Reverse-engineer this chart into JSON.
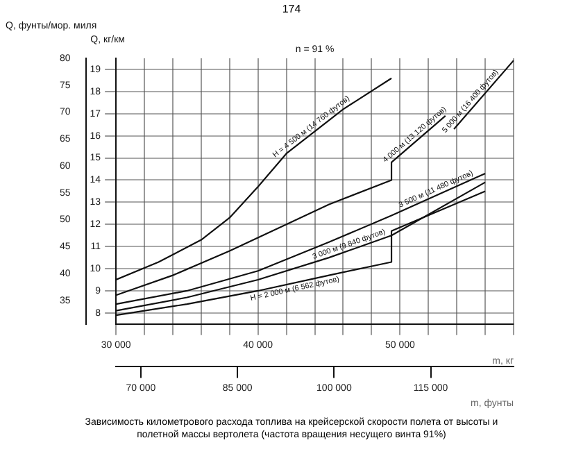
{
  "chart_data": {
    "type": "line",
    "title": "n = 91 %",
    "xlabel": "m, кг",
    "x2label": "m, фунты",
    "ylabel": "Q, кг/км",
    "y2label": "Q, фунты/мор. миля",
    "annotations": [
      "174",
      "Зависимость километрового расхода топлива на крейсерской скорости полета от высоты и полетной массы вертолета (частота вращения несущего винта 91%)"
    ],
    "xlim": [
      30000,
      58000
    ],
    "xticks": [
      {
        "value": 30000,
        "label": "30 000"
      },
      {
        "value": 32000,
        "label": null
      },
      {
        "value": 34000,
        "label": null
      },
      {
        "value": 36000,
        "label": null
      },
      {
        "value": 38000,
        "label": null
      },
      {
        "value": 40000,
        "label": "40 000"
      },
      {
        "value": 42000,
        "label": null
      },
      {
        "value": 44000,
        "label": null
      },
      {
        "value": 46000,
        "label": null
      },
      {
        "value": 48000,
        "label": null
      },
      {
        "value": 50000,
        "label": "50 000"
      },
      {
        "value": 52000,
        "label": null
      },
      {
        "value": 54000,
        "label": null
      },
      {
        "value": 56000,
        "label": null
      },
      {
        "value": 58000,
        "label": null
      }
    ],
    "x2lim": [
      66139,
      127868
    ],
    "x2ticks": [
      {
        "value": 70000,
        "label": "70 000"
      },
      {
        "value": 85000,
        "label": "85 000"
      },
      {
        "value": 100000,
        "label": "100 000"
      },
      {
        "value": 115000,
        "label": "115 000"
      }
    ],
    "ylim": [
      7.5,
      19.5
    ],
    "yticks": [
      8,
      9,
      10,
      11,
      12,
      13,
      14,
      15,
      16,
      17,
      18,
      19
    ],
    "y2lim": [
      30.6,
      80.0
    ],
    "y2ticks": [
      35,
      40,
      45,
      50,
      55,
      60,
      65,
      70,
      75,
      80
    ],
    "grid": true,
    "legend": false,
    "marker": "none",
    "line_style": "solid",
    "series": [
      {
        "name": "H = 4 500 м (14 760 футов)",
        "color": "#111111",
        "x": [
          30000,
          33000,
          36000,
          38000,
          40000,
          42000,
          46000,
          49400
        ],
        "values": [
          9.5,
          10.3,
          11.3,
          12.3,
          13.7,
          15.2,
          17.2,
          18.6
        ]
      },
      {
        "name": "4 000 м (13 120 футов)",
        "color": "#111111",
        "x": [
          30000,
          34000,
          38000,
          42000,
          45000,
          49400,
          49400,
          53200
        ],
        "values": [
          8.8,
          9.7,
          10.8,
          12.0,
          12.9,
          14.0,
          14.8,
          16.9
        ]
      },
      {
        "name": "3 500 м (11 480 футов)",
        "color": "#111111",
        "x": [
          30000,
          35000,
          40000,
          45000,
          49400,
          56000
        ],
        "values": [
          8.4,
          9.0,
          9.9,
          11.2,
          12.4,
          14.3
        ]
      },
      {
        "name": "3 000 м (9 840 футов)",
        "color": "#111111",
        "x": [
          30000,
          35000,
          40000,
          45000,
          49400,
          56000
        ],
        "values": [
          8.1,
          8.7,
          9.5,
          10.5,
          11.5,
          13.9
        ]
      },
      {
        "name": "H = 2 000 м (6 562 футов)",
        "color": "#111111",
        "x": [
          30000,
          35000,
          40000,
          45000,
          49400,
          49400,
          56000
        ],
        "values": [
          7.9,
          8.4,
          9.0,
          9.7,
          10.3,
          11.7,
          13.5
        ]
      },
      {
        "name": "5 000 м (16 400 футов)",
        "color": "#111111",
        "x": [
          53800,
          58000
        ],
        "values": [
          16.3,
          19.4
        ]
      }
    ]
  }
}
